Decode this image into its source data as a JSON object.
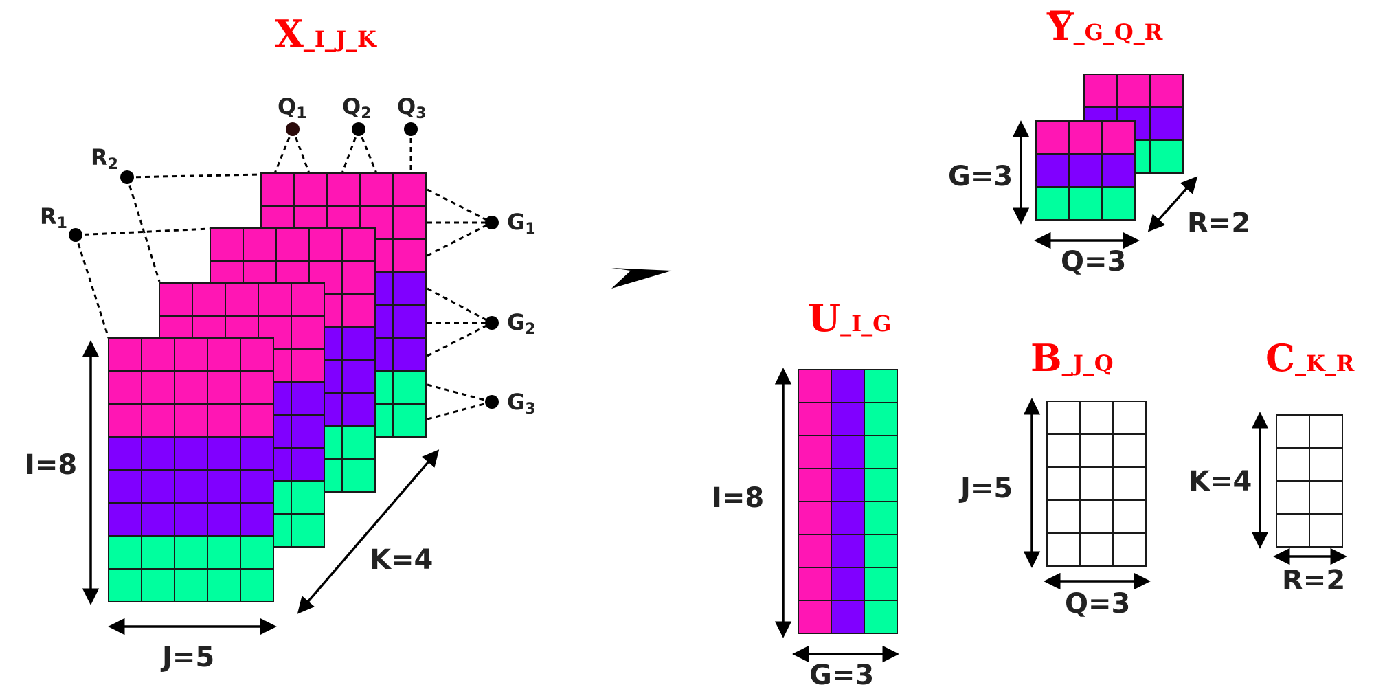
{
  "colors": {
    "magenta": "#ff16b4",
    "violet": "#8000ff",
    "teal": "#00ff9e",
    "white": "#ffffff",
    "title_red": "#ff0000",
    "node": "#000000",
    "node_q1": "#2a0a0a"
  },
  "tensor_x": {
    "title": "X",
    "title_sub": "_I_J_K",
    "rows_colors": [
      "magenta",
      "magenta",
      "magenta",
      "violet",
      "violet",
      "violet",
      "teal",
      "teal"
    ],
    "label_i": "I=8",
    "label_j": "J=5",
    "label_k": "K=4",
    "nodes_q": [
      {
        "label": "Q",
        "sub": "1"
      },
      {
        "label": "Q",
        "sub": "2"
      },
      {
        "label": "Q",
        "sub": "3"
      }
    ],
    "nodes_r": [
      {
        "label": "R",
        "sub": "2"
      },
      {
        "label": "R",
        "sub": "1"
      }
    ],
    "nodes_g": [
      {
        "label": "G",
        "sub": "1"
      },
      {
        "label": "G",
        "sub": "2"
      },
      {
        "label": "G",
        "sub": "3"
      }
    ]
  },
  "core_y": {
    "title": "Y",
    "title_sub": "_G_Q_R",
    "rows_colors": [
      "magenta",
      "violet",
      "teal"
    ],
    "label_g": "G=3",
    "label_q": "Q=3",
    "label_r": "R=2"
  },
  "matrix_u": {
    "title": "U",
    "title_sub": "_I_G",
    "col_colors": [
      "magenta",
      "violet",
      "teal"
    ],
    "label_i": "I=8",
    "label_g": "G=3"
  },
  "matrix_b": {
    "title": "B",
    "title_sub": "_J_Q",
    "label_j": "J=5",
    "label_q": "Q=3"
  },
  "matrix_c": {
    "title": "C",
    "title_sub": "_K_R",
    "label_k": "K=4",
    "label_r": "R=2"
  }
}
